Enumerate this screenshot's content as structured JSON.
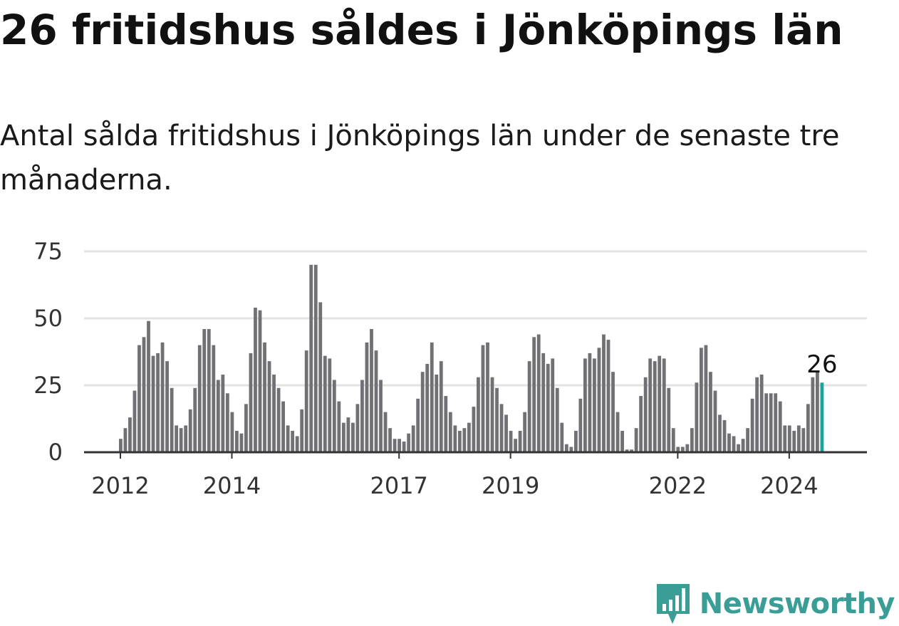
{
  "title": "26 fritidshus såldes i Jönköpings län",
  "subtitle": "Antal sålda fritidshus i Jönköpings län under de senaste tre månaderna.",
  "brand": {
    "name": "Newsworthy",
    "color": "#3a9e97",
    "icon": "newsworthy-logo-icon"
  },
  "chart_data": {
    "type": "bar",
    "title": "",
    "xlabel": "",
    "ylabel": "",
    "ylim": [
      0,
      75
    ],
    "yticks": [
      0,
      25,
      50,
      75
    ],
    "xticks": [
      "2012",
      "2014",
      "2017",
      "2019",
      "2022",
      "2024"
    ],
    "grid": true,
    "colors": {
      "bar": "#707075",
      "highlight": "#17a69a"
    },
    "highlight_label": "26",
    "values": [
      5,
      9,
      13,
      23,
      40,
      43,
      49,
      36,
      37,
      41,
      34,
      24,
      10,
      9,
      10,
      16,
      24,
      40,
      46,
      46,
      40,
      27,
      29,
      22,
      15,
      8,
      7,
      18,
      37,
      54,
      53,
      41,
      34,
      29,
      24,
      19,
      10,
      8,
      6,
      16,
      38,
      70,
      70,
      56,
      36,
      35,
      27,
      19,
      11,
      13,
      11,
      18,
      27,
      41,
      46,
      38,
      27,
      15,
      9,
      5,
      5,
      4,
      7,
      10,
      20,
      30,
      33,
      41,
      29,
      34,
      21,
      15,
      10,
      8,
      9,
      11,
      17,
      28,
      40,
      41,
      28,
      24,
      18,
      14,
      8,
      5,
      8,
      15,
      34,
      43,
      44,
      37,
      33,
      35,
      24,
      11,
      3,
      2,
      8,
      20,
      35,
      37,
      35,
      39,
      44,
      42,
      30,
      15,
      8,
      1,
      1,
      9,
      21,
      28,
      35,
      34,
      36,
      35,
      24,
      9,
      2,
      2,
      3,
      9,
      26,
      39,
      40,
      30,
      23,
      14,
      12,
      7,
      6,
      3,
      5,
      9,
      20,
      28,
      29,
      22,
      22,
      22,
      19,
      10,
      10,
      8,
      10,
      9,
      18,
      28,
      30,
      26
    ]
  }
}
